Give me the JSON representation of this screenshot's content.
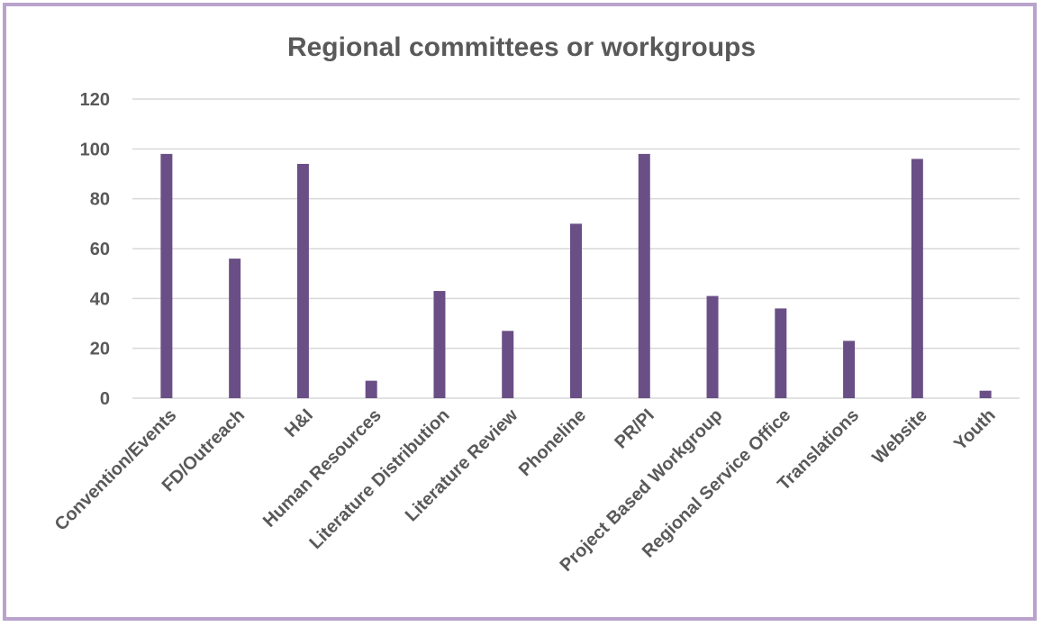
{
  "chart_data": {
    "type": "bar",
    "title": "Regional committees or workgroups",
    "xlabel": "",
    "ylabel": "",
    "ylim": [
      0,
      120
    ],
    "yticks": [
      0,
      20,
      40,
      60,
      80,
      100,
      120
    ],
    "grid": true,
    "legend": "none",
    "bar_color": "#6a4f86",
    "grid_color": "#d9d9d9",
    "categories": [
      "Convention/Events",
      "FD/Outreach",
      "H&I",
      "Human Resources",
      "Literature Distribution",
      "Literature Review",
      "Phoneline",
      "PR/PI",
      "Project Based Workgroup",
      "Regional Service Office",
      "Translations",
      "Website",
      "Youth"
    ],
    "values": [
      98,
      56,
      94,
      7,
      43,
      27,
      70,
      98,
      41,
      36,
      23,
      96,
      3
    ]
  }
}
